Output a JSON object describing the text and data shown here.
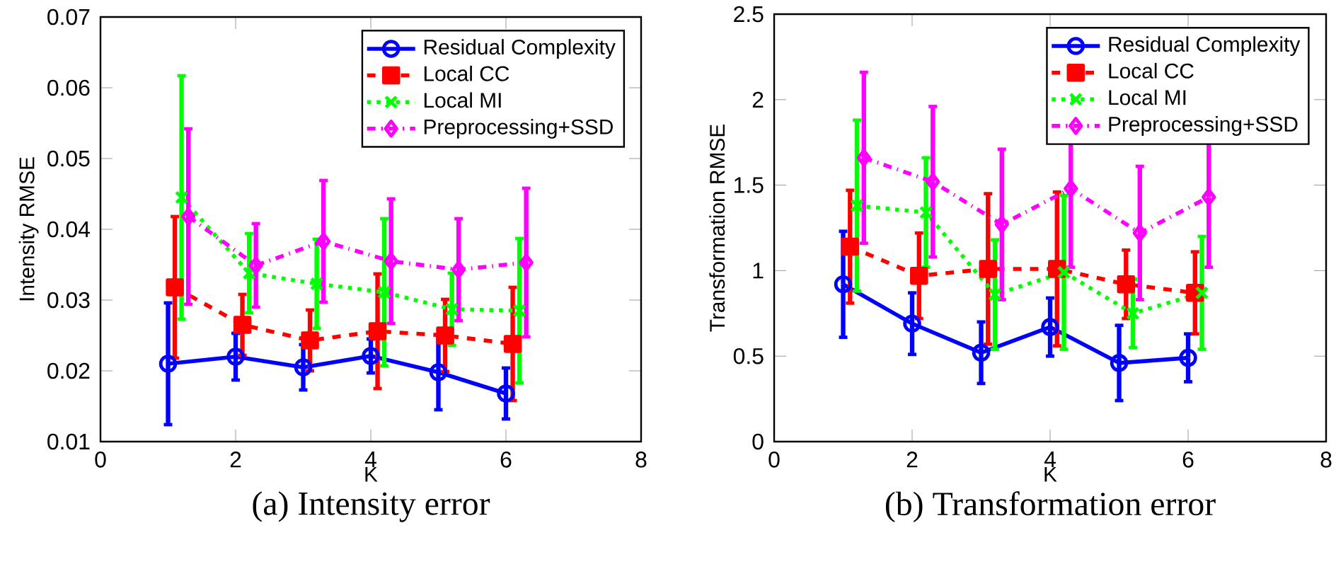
{
  "chart_data": [
    {
      "type": "line",
      "title": "(a) Intensity error",
      "xlabel": "K",
      "ylabel": "Intensity RMSE",
      "xlim": [
        0,
        8
      ],
      "xticks": [
        0,
        2,
        4,
        6,
        8
      ],
      "ylim": [
        0.01,
        0.07
      ],
      "yticks": [
        0.01,
        0.02,
        0.03,
        0.04,
        0.05,
        0.06,
        0.07
      ],
      "legend": "top right",
      "series": [
        {
          "name": "Residual Complexity",
          "color": "#0000ff",
          "marker": "circle",
          "line_style": "solid",
          "x": [
            1,
            2,
            3,
            4,
            5,
            6
          ],
          "values": [
            0.021,
            0.022,
            0.0205,
            0.0221,
            0.0198,
            0.0168
          ],
          "errors": [
            0.0086,
            0.0033,
            0.0032,
            0.0024,
            0.0053,
            0.0036
          ]
        },
        {
          "name": "Local CC",
          "color": "#ff0000",
          "marker": "square",
          "line_style": "dashed",
          "x": [
            1.1,
            2.1,
            3.1,
            4.1,
            5.1,
            6.1
          ],
          "values": [
            0.0318,
            0.0265,
            0.0243,
            0.0256,
            0.025,
            0.0238
          ],
          "errors": [
            0.01,
            0.0043,
            0.0043,
            0.0081,
            0.0051,
            0.008
          ]
        },
        {
          "name": "Local MI",
          "color": "#00ff00",
          "marker": "cross",
          "line_style": "dotted",
          "x": [
            1.2,
            2.2,
            3.2,
            4.2,
            5.2,
            6.2
          ],
          "values": [
            0.0445,
            0.0338,
            0.0323,
            0.0311,
            0.0287,
            0.0285
          ],
          "errors": [
            0.0172,
            0.0056,
            0.0063,
            0.0104,
            0.0051,
            0.0102
          ]
        },
        {
          "name": "Preprocessing+SSD",
          "color": "#ff00ff",
          "marker": "diamond",
          "line_style": "dashdot",
          "x": [
            1.3,
            2.3,
            3.3,
            4.3,
            5.3,
            6.3
          ],
          "values": [
            0.0418,
            0.0349,
            0.0383,
            0.0355,
            0.0343,
            0.0353
          ],
          "errors": [
            0.0124,
            0.0059,
            0.0086,
            0.0088,
            0.0072,
            0.0105
          ]
        }
      ]
    },
    {
      "type": "line",
      "title": "(b) Transformation error",
      "xlabel": "K",
      "ylabel": "Transformation RMSE",
      "xlim": [
        0,
        8
      ],
      "xticks": [
        0,
        2,
        4,
        6,
        8
      ],
      "ylim": [
        0,
        2.5
      ],
      "yticks": [
        0,
        0.5,
        1,
        1.5,
        2,
        2.5
      ],
      "legend": "top right",
      "series": [
        {
          "name": "Residual Complexity",
          "color": "#0000ff",
          "marker": "circle",
          "line_style": "solid",
          "x": [
            1,
            2,
            3,
            4,
            5,
            6
          ],
          "values": [
            0.92,
            0.69,
            0.52,
            0.67,
            0.46,
            0.49
          ],
          "errors": [
            0.31,
            0.18,
            0.18,
            0.17,
            0.22,
            0.14
          ]
        },
        {
          "name": "Local CC",
          "color": "#ff0000",
          "marker": "square",
          "line_style": "dashed",
          "x": [
            1.1,
            2.1,
            3.1,
            4.1,
            5.1,
            6.1
          ],
          "values": [
            1.14,
            0.97,
            1.01,
            1.01,
            0.92,
            0.87
          ],
          "errors": [
            0.33,
            0.25,
            0.44,
            0.45,
            0.2,
            0.24
          ]
        },
        {
          "name": "Local MI",
          "color": "#00ff00",
          "marker": "cross",
          "line_style": "dotted",
          "x": [
            1.2,
            2.2,
            3.2,
            4.2,
            5.2,
            6.2
          ],
          "values": [
            1.38,
            1.34,
            0.86,
            0.99,
            0.75,
            0.87
          ],
          "errors": [
            0.5,
            0.32,
            0.32,
            0.45,
            0.2,
            0.33
          ]
        },
        {
          "name": "Preprocessing+SSD",
          "color": "#ff00ff",
          "marker": "diamond",
          "line_style": "dashdot",
          "x": [
            1.3,
            2.3,
            3.3,
            4.3,
            5.3,
            6.3
          ],
          "values": [
            1.66,
            1.52,
            1.27,
            1.48,
            1.22,
            1.43
          ],
          "errors": [
            0.5,
            0.44,
            0.44,
            0.46,
            0.39,
            0.41
          ]
        }
      ]
    }
  ]
}
